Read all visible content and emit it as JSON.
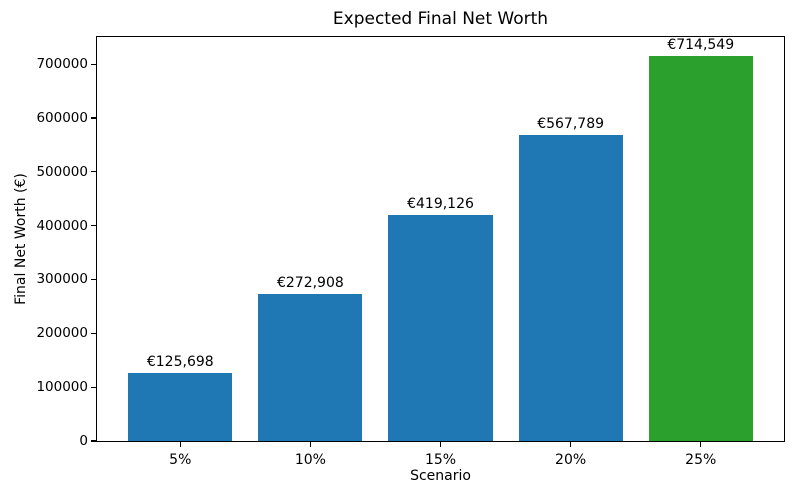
{
  "chart_data": {
    "type": "bar",
    "title": "Expected Final Net Worth",
    "xlabel": "Scenario",
    "ylabel": "Final Net Worth (€)",
    "categories": [
      "5%",
      "10%",
      "15%",
      "20%",
      "25%"
    ],
    "values": [
      125698,
      272908,
      419126,
      567789,
      714549
    ],
    "bar_labels": [
      "€125,698",
      "€272,908",
      "€419,126",
      "€567,789",
      "€714,549"
    ],
    "bar_colors": [
      "#1f77b4",
      "#1f77b4",
      "#1f77b4",
      "#1f77b4",
      "#2ca02c"
    ],
    "yticks": [
      0,
      100000,
      200000,
      300000,
      400000,
      500000,
      600000,
      700000
    ],
    "ylim": [
      0,
      750276
    ],
    "xlim": [
      -0.64,
      4.64
    ],
    "bar_width": 0.8,
    "grid": false,
    "legend": "none",
    "background_color": "#ffffff",
    "spine_color": "#000000",
    "text_color": "#000000"
  }
}
